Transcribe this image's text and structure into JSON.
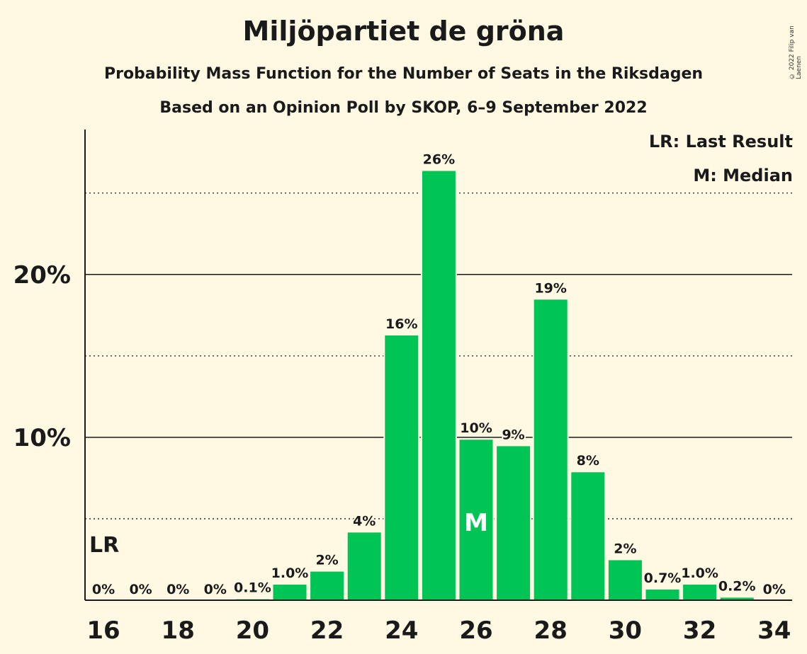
{
  "title": "Miljöpartiet de gröna",
  "subtitle1": "Probability Mass Function for the Number of Seats in the Riksdagen",
  "subtitle2": "Based on an Opinion Poll by SKOP, 6–9 September 2022",
  "copyright": "© 2022 Filip van Laenen",
  "legend": {
    "last_result": "LR: Last Result",
    "median": "M: Median"
  },
  "colors": {
    "background": "#fff9e3",
    "bar": "#00c453",
    "text": "#1a1a1a"
  },
  "chart_data": {
    "type": "bar",
    "x": [
      16,
      17,
      18,
      19,
      20,
      21,
      22,
      23,
      24,
      25,
      26,
      27,
      28,
      29,
      30,
      31,
      32,
      33,
      34
    ],
    "values": [
      0,
      0,
      0,
      0,
      0.1,
      1.0,
      1.8,
      4.2,
      16.3,
      26.4,
      9.9,
      9.5,
      18.5,
      7.9,
      2.5,
      0.7,
      1.0,
      0.2,
      0
    ],
    "labels": [
      "0%",
      "0%",
      "0%",
      "0%",
      "0.1%",
      "1.0%",
      "2%",
      "4%",
      "16%",
      "26%",
      "10%",
      "9%",
      "19%",
      "8%",
      "2%",
      "0.7%",
      "1.0%",
      "0.2%",
      "0%"
    ],
    "x_tick_labels": [
      "16",
      "18",
      "20",
      "22",
      "24",
      "26",
      "28",
      "30",
      "32",
      "34"
    ],
    "y_tick_labels": [
      "10%",
      "20%"
    ],
    "y_major_ticks": [
      10,
      20
    ],
    "y_minor_ticks": [
      5,
      15,
      25
    ],
    "ylim": [
      0,
      28.9
    ],
    "last_result_seat": 16,
    "last_result_label": "LR",
    "median_seat": 26,
    "median_label": "M",
    "ylabel": "",
    "xlabel": ""
  }
}
